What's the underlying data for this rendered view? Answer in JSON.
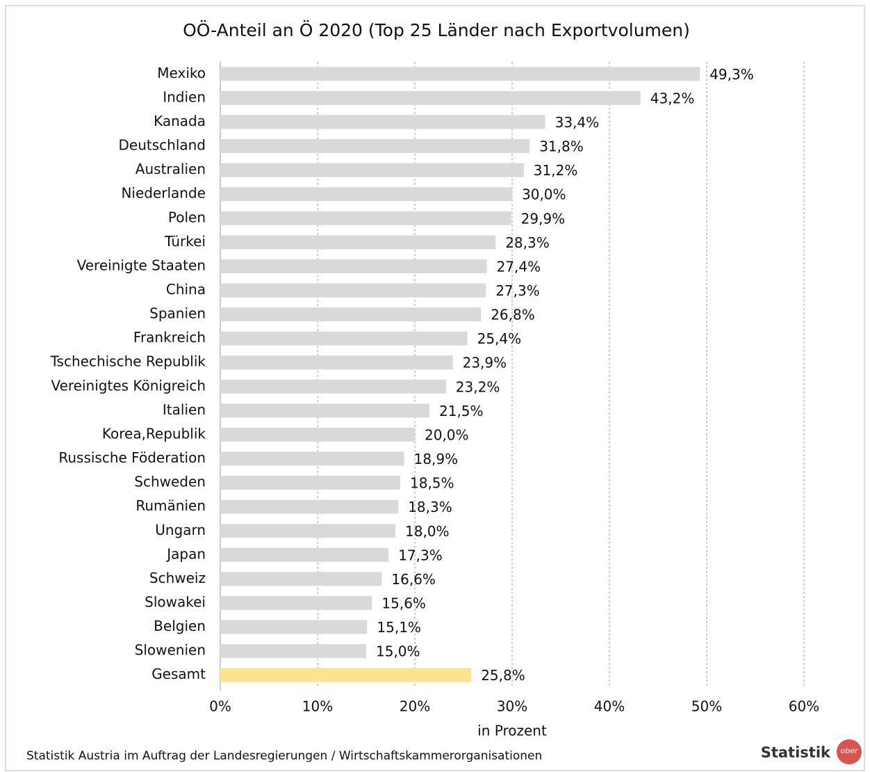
{
  "chart_data": {
    "type": "hbar",
    "title": "OÖ-Anteil an Ö 2020 (Top 25 Länder nach Exportvolumen)",
    "x_axis_label": "in Prozent",
    "source": "Statistik Austria im Auftrag der Landesregierungen / Wirtschaftskammerorganisationen",
    "logo": "Statistik",
    "logo_badge": "ober",
    "categories": [
      "Mexiko",
      "Indien",
      "Kanada",
      "Deutschland",
      "Australien",
      "Niederlande",
      "Polen",
      "Türkei",
      "Vereinigte Staaten",
      "China",
      "Spanien",
      "Frankreich",
      "Tschechische Republik",
      "Vereinigtes Königreich",
      "Italien",
      "Korea,Republik",
      "Russische Föderation",
      "Schweden",
      "Rumänien",
      "Ungarn",
      "Japan",
      "Schweiz",
      "Slowakei",
      "Belgien",
      "Slowenien",
      "Gesamt"
    ],
    "values": [
      49.3,
      43.2,
      33.4,
      31.8,
      31.2,
      30.0,
      29.9,
      28.3,
      27.4,
      27.3,
      26.8,
      25.4,
      23.9,
      23.2,
      21.5,
      20.0,
      18.9,
      18.5,
      18.3,
      18.0,
      17.3,
      16.6,
      15.6,
      15.1,
      15.0,
      25.8
    ],
    "value_labels": [
      "49,3%",
      "43,2%",
      "33,4%",
      "31,8%",
      "31,2%",
      "30,0%",
      "29,9%",
      "28,3%",
      "27,4%",
      "27,3%",
      "26,8%",
      "25,4%",
      "23,9%",
      "23,2%",
      "21,5%",
      "20,0%",
      "18,9%",
      "18,5%",
      "18,3%",
      "18,0%",
      "17,3%",
      "16,6%",
      "15,6%",
      "15,1%",
      "15,0%",
      "25,8%"
    ],
    "colors": [
      "#d9d9d9",
      "#d9d9d9",
      "#d9d9d9",
      "#d9d9d9",
      "#d9d9d9",
      "#d9d9d9",
      "#d9d9d9",
      "#d9d9d9",
      "#d9d9d9",
      "#d9d9d9",
      "#d9d9d9",
      "#d9d9d9",
      "#d9d9d9",
      "#d9d9d9",
      "#d9d9d9",
      "#d9d9d9",
      "#d9d9d9",
      "#d9d9d9",
      "#d9d9d9",
      "#d9d9d9",
      "#d9d9d9",
      "#d9d9d9",
      "#d9d9d9",
      "#d9d9d9",
      "#d9d9d9",
      "#fde38f"
    ],
    "xlim": [
      0,
      60
    ],
    "xticks": [
      {
        "value": 0,
        "label": "0%"
      },
      {
        "value": 10,
        "label": "10%"
      },
      {
        "value": 20,
        "label": "20%"
      },
      {
        "value": 30,
        "label": "30%"
      },
      {
        "value": 40,
        "label": "40%"
      },
      {
        "value": 50,
        "label": "50%"
      },
      {
        "value": 60,
        "label": "60%"
      }
    ],
    "grid": true
  }
}
